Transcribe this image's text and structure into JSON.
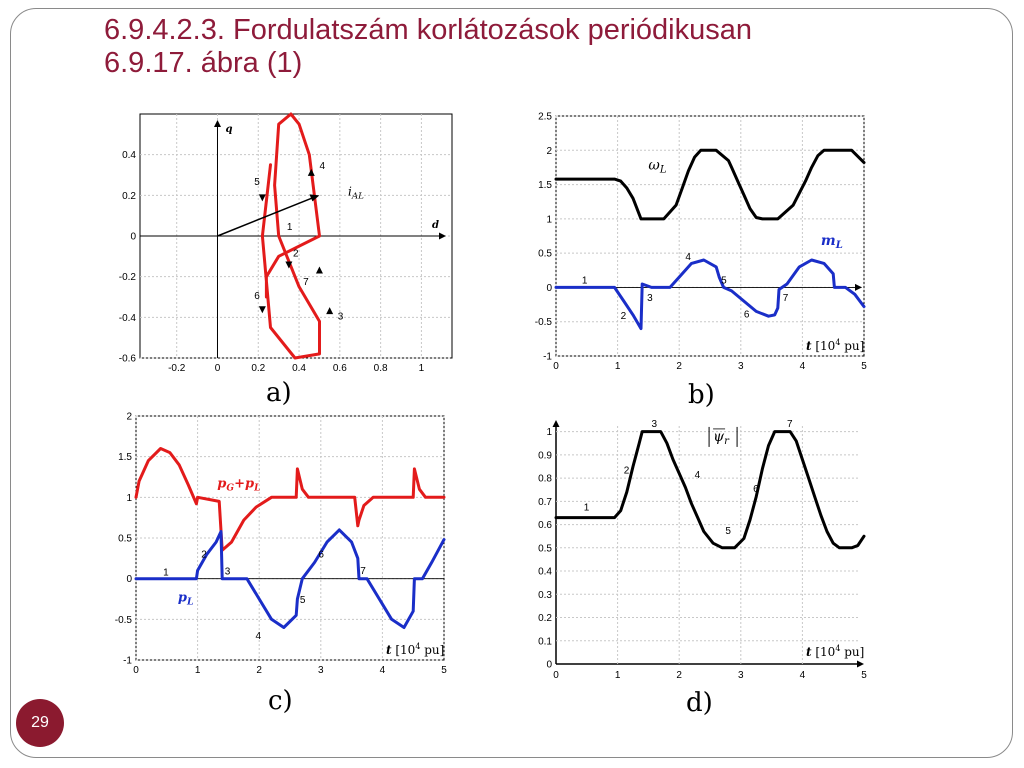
{
  "slide": {
    "title_line1": "6.9.4.2.3. Fordulatszám korlátozások periódikusan",
    "title_line2": "6.9.17. ábra (1)",
    "page_number": "29"
  },
  "colors": {
    "title": "#8e1b3a",
    "red_curve": "#e31b1b",
    "blue_curve": "#1a2ec8",
    "badge": "#8b1a2f"
  },
  "panels": {
    "a": {
      "label": "a)",
      "xlabel": "d",
      "ylabel": "q",
      "vector_label": "i",
      "vector_sub": "AL",
      "xticks": [
        "-0.2",
        "0",
        "0.2",
        "0.4",
        "0.6",
        "0.8",
        "1"
      ],
      "yticks": [
        "0.4",
        "0.2",
        "0",
        "-0.2",
        "-0.4",
        "-0.6"
      ],
      "annotations": [
        "1",
        "2",
        "3",
        "4",
        "5",
        "6",
        "7"
      ]
    },
    "b": {
      "label": "b)",
      "xticks": [
        "0",
        "1",
        "2",
        "3",
        "4",
        "5"
      ],
      "yticks": [
        "2.5",
        "2",
        "1.5",
        "1",
        "0.5",
        "0",
        "-0.5",
        "-1"
      ],
      "omega_label": "ω",
      "omega_sub": "L",
      "m_label": "m",
      "m_sub": "L",
      "t_label": "t",
      "t_unit_open": " [10",
      "t_unit_exp": "4",
      "t_unit_close": " pu]",
      "annotations": [
        "1",
        "2",
        "3",
        "4",
        "5",
        "6",
        "7"
      ]
    },
    "c": {
      "label": "c)",
      "xticks": [
        "0",
        "1",
        "2",
        "3",
        "4",
        "5"
      ],
      "yticks": [
        "2",
        "1.5",
        "1",
        "0.5",
        "0",
        "-0.5",
        "-1"
      ],
      "pg_label": "p",
      "pg_sub": "G",
      "pg_plus": "+p",
      "pg_sub2": "L",
      "pl_label": "p",
      "pl_sub": "L",
      "t_label": "t",
      "t_unit_open": " [10",
      "t_unit_exp": "4",
      "t_unit_close": " pu]",
      "annotations": [
        "1",
        "2",
        "3",
        "4",
        "5",
        "6",
        "7"
      ]
    },
    "d": {
      "label": "d)",
      "xticks": [
        "0",
        "1",
        "2",
        "3",
        "4",
        "5"
      ],
      "yticks": [
        "1",
        "0.9",
        "0.8",
        "0.7",
        "0.6",
        "0.5",
        "0.4",
        "0.3",
        "0.2",
        "0.1",
        "0"
      ],
      "psi_label": "ψ",
      "psi_sub": "r",
      "t_label": "t",
      "t_unit_open": " [10",
      "t_unit_exp": "4",
      "t_unit_close": " pu]",
      "annotations": [
        "1",
        "2",
        "3",
        "4",
        "5",
        "6",
        "7"
      ]
    }
  },
  "chart_data": [
    {
      "type": "line",
      "panel": "a",
      "x_axis_symbol": "d",
      "y_axis_symbol": "q",
      "xlim": [
        -0.38,
        1.15
      ],
      "ylim": [
        -0.6,
        0.6
      ],
      "series": [
        {
          "name": "i_AL",
          "x": [
            0.26,
            0.22,
            0.26,
            0.38,
            0.5,
            0.5,
            0.4,
            0.3,
            0.28,
            0.3,
            0.36,
            0.4,
            0.45,
            0.5,
            0.3,
            0.24,
            0.24
          ],
          "y": [
            0.35,
            0.0,
            -0.45,
            -0.6,
            -0.58,
            -0.42,
            -0.25,
            0.0,
            0.25,
            0.55,
            0.6,
            0.55,
            0.4,
            0.0,
            -0.1,
            -0.2,
            -0.3
          ]
        }
      ],
      "vector": {
        "from": [
          0,
          0
        ],
        "to": [
          0.5,
          0.2
        ]
      }
    },
    {
      "type": "line",
      "panel": "b",
      "x_axis_symbol": "t",
      "xlim": [
        0,
        5
      ],
      "ylim": [
        -1,
        2.5
      ],
      "series": [
        {
          "name": "ωL",
          "x": [
            0,
            0.95,
            1.05,
            1.15,
            1.25,
            1.38,
            1.5,
            1.75,
            1.95,
            2.05,
            2.15,
            2.25,
            2.35,
            2.6,
            2.8,
            2.85,
            2.95,
            3.05,
            3.15,
            3.25,
            3.35,
            3.45,
            3.55,
            3.6,
            3.85,
            4.05,
            4.15,
            4.25,
            4.35,
            4.45,
            4.55,
            4.8,
            5.0
          ],
          "y": [
            1.58,
            1.58,
            1.55,
            1.45,
            1.3,
            1.0,
            1.0,
            1.0,
            1.2,
            1.45,
            1.7,
            1.9,
            2.0,
            2.0,
            1.85,
            1.75,
            1.55,
            1.35,
            1.15,
            1.02,
            1.0,
            1.0,
            1.0,
            1.0,
            1.2,
            1.55,
            1.75,
            1.92,
            2.0,
            2.0,
            2.0,
            2.0,
            1.82
          ]
        },
        {
          "name": "mL",
          "x": [
            0,
            0.95,
            1.1,
            1.25,
            1.38,
            1.4,
            1.55,
            1.85,
            2.0,
            2.2,
            2.4,
            2.6,
            2.65,
            2.72,
            2.85,
            3.05,
            3.25,
            3.45,
            3.55,
            3.6,
            3.62,
            3.75,
            3.95,
            4.15,
            4.35,
            4.5,
            4.52,
            4.7,
            4.85,
            5.0
          ],
          "y": [
            0,
            0,
            -0.2,
            -0.4,
            -0.6,
            0.05,
            0,
            0,
            0.15,
            0.35,
            0.4,
            0.3,
            0.15,
            0,
            -0.05,
            -0.2,
            -0.35,
            -0.42,
            -0.4,
            -0.3,
            -0.03,
            0.05,
            0.3,
            0.4,
            0.35,
            0.2,
            0,
            0,
            -0.1,
            -0.28
          ]
        }
      ]
    },
    {
      "type": "line",
      "panel": "c",
      "x_axis_symbol": "t",
      "xlim": [
        0,
        5
      ],
      "ylim": [
        -1,
        2
      ],
      "series": [
        {
          "name": "pG+pL",
          "x": [
            0,
            0.05,
            0.2,
            0.4,
            0.55,
            0.7,
            0.85,
            0.98,
            1.0,
            1.35,
            1.4,
            1.55,
            1.75,
            1.95,
            2.2,
            2.5,
            2.6,
            2.62,
            2.7,
            2.8,
            2.9,
            3.1,
            3.4,
            3.55,
            3.6,
            3.62,
            3.7,
            3.85,
            4.1,
            4.4,
            4.5,
            4.52,
            4.6,
            4.7,
            5.0
          ],
          "y": [
            1.0,
            1.2,
            1.45,
            1.6,
            1.55,
            1.4,
            1.15,
            0.92,
            1.0,
            0.95,
            0.35,
            0.45,
            0.72,
            0.88,
            1.0,
            1.0,
            1.0,
            1.35,
            1.1,
            1.0,
            1.0,
            1.0,
            1.0,
            1.0,
            0.65,
            0.72,
            0.9,
            1.0,
            1.0,
            1.0,
            1.0,
            1.35,
            1.1,
            1.0,
            1.0
          ]
        },
        {
          "name": "pL",
          "x": [
            0,
            0.98,
            1.0,
            1.15,
            1.3,
            1.38,
            1.4,
            1.55,
            1.8,
            2.0,
            2.2,
            2.4,
            2.6,
            2.62,
            2.7,
            2.9,
            3.1,
            3.3,
            3.5,
            3.6,
            3.62,
            3.75,
            3.95,
            4.15,
            4.35,
            4.5,
            4.52,
            4.65,
            4.8,
            5.0
          ],
          "y": [
            0,
            0,
            0.1,
            0.3,
            0.45,
            0.58,
            0,
            0,
            0,
            -0.25,
            -0.5,
            -0.6,
            -0.45,
            -0.25,
            0,
            0.2,
            0.45,
            0.6,
            0.45,
            0.25,
            0,
            0,
            -0.25,
            -0.5,
            -0.6,
            -0.4,
            0,
            0,
            0.2,
            0.48
          ]
        }
      ]
    },
    {
      "type": "line",
      "panel": "d",
      "x_axis_symbol": "t",
      "xlim": [
        0,
        5
      ],
      "ylim": [
        0,
        1.05
      ],
      "series": [
        {
          "name": "|ψr|",
          "x": [
            0,
            0.95,
            1.05,
            1.15,
            1.25,
            1.35,
            1.4,
            1.6,
            1.7,
            1.8,
            1.9,
            2.0,
            2.1,
            2.2,
            2.3,
            2.4,
            2.55,
            2.7,
            2.9,
            3.05,
            3.15,
            3.25,
            3.35,
            3.45,
            3.55,
            3.65,
            3.8,
            3.9,
            4.0,
            4.1,
            4.2,
            4.3,
            4.4,
            4.5,
            4.6,
            4.8,
            4.9,
            5.0
          ],
          "y": [
            0.63,
            0.63,
            0.66,
            0.74,
            0.85,
            0.95,
            1.0,
            1.0,
            1.0,
            0.95,
            0.88,
            0.82,
            0.76,
            0.69,
            0.63,
            0.57,
            0.52,
            0.5,
            0.5,
            0.54,
            0.62,
            0.72,
            0.84,
            0.94,
            1.0,
            1.0,
            1.0,
            0.96,
            0.88,
            0.8,
            0.72,
            0.64,
            0.57,
            0.52,
            0.5,
            0.5,
            0.51,
            0.55
          ]
        }
      ]
    }
  ]
}
